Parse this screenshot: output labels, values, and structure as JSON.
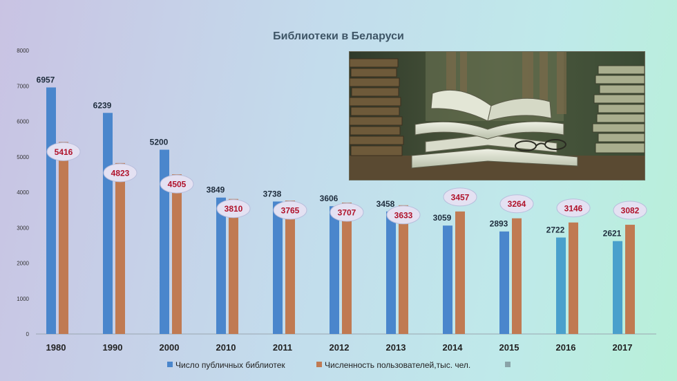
{
  "chart_data": {
    "type": "bar",
    "title": "Библиотеки в Беларуси",
    "categories": [
      "1980",
      "1990",
      "2000",
      "2010",
      "2011",
      "2012",
      "2013",
      "2014",
      "2015",
      "2016",
      "2017"
    ],
    "series": [
      {
        "name": "Число публичных библиотек",
        "values": [
          6957,
          6239,
          5200,
          3849,
          3738,
          3606,
          3458,
          3059,
          2893,
          2722,
          2621
        ],
        "color": "#4a86cc"
      },
      {
        "name": "Численность пользователей,тыс. чел.",
        "values": [
          5416,
          4823,
          4505,
          3810,
          3765,
          3707,
          3633,
          3457,
          3264,
          3146,
          3082
        ],
        "color": "#c07a52"
      }
    ],
    "legend_third_color": "#8aa3a8",
    "ylim": [
      0,
      8000
    ],
    "yticks": [
      0,
      1000,
      2000,
      3000,
      4000,
      5000,
      6000,
      7000,
      8000
    ],
    "grid": false,
    "legend_position": "bottom",
    "label_color_series1": "#1f2d3d",
    "label_color_series2": "#b0122a"
  },
  "image": {
    "subject": "open-books-photo"
  }
}
